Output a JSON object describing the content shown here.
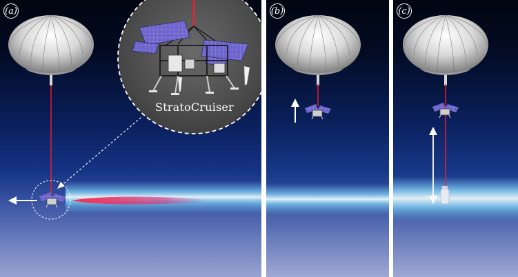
{
  "panels": [
    {
      "id": "a",
      "label": "a"
    },
    {
      "id": "b",
      "label": "b"
    },
    {
      "id": "c",
      "label": "c"
    }
  ],
  "inset": {
    "caption": "StratoCruiser"
  },
  "colors": {
    "sky_top": "#000814",
    "sky_mid": "#0d2a72",
    "sky_low": "#5e74b8",
    "sky_bottom": "#9ea7d4",
    "layer_glow": "#cfe6f4",
    "tether": "#ff1a2a",
    "solar_panel": "#6d64cc",
    "arrow": "#ffffff"
  },
  "icons": [
    "balloon-icon",
    "gondola-icon",
    "solar-panel-icon",
    "arrow-icon",
    "magnifier-circle-icon"
  ]
}
